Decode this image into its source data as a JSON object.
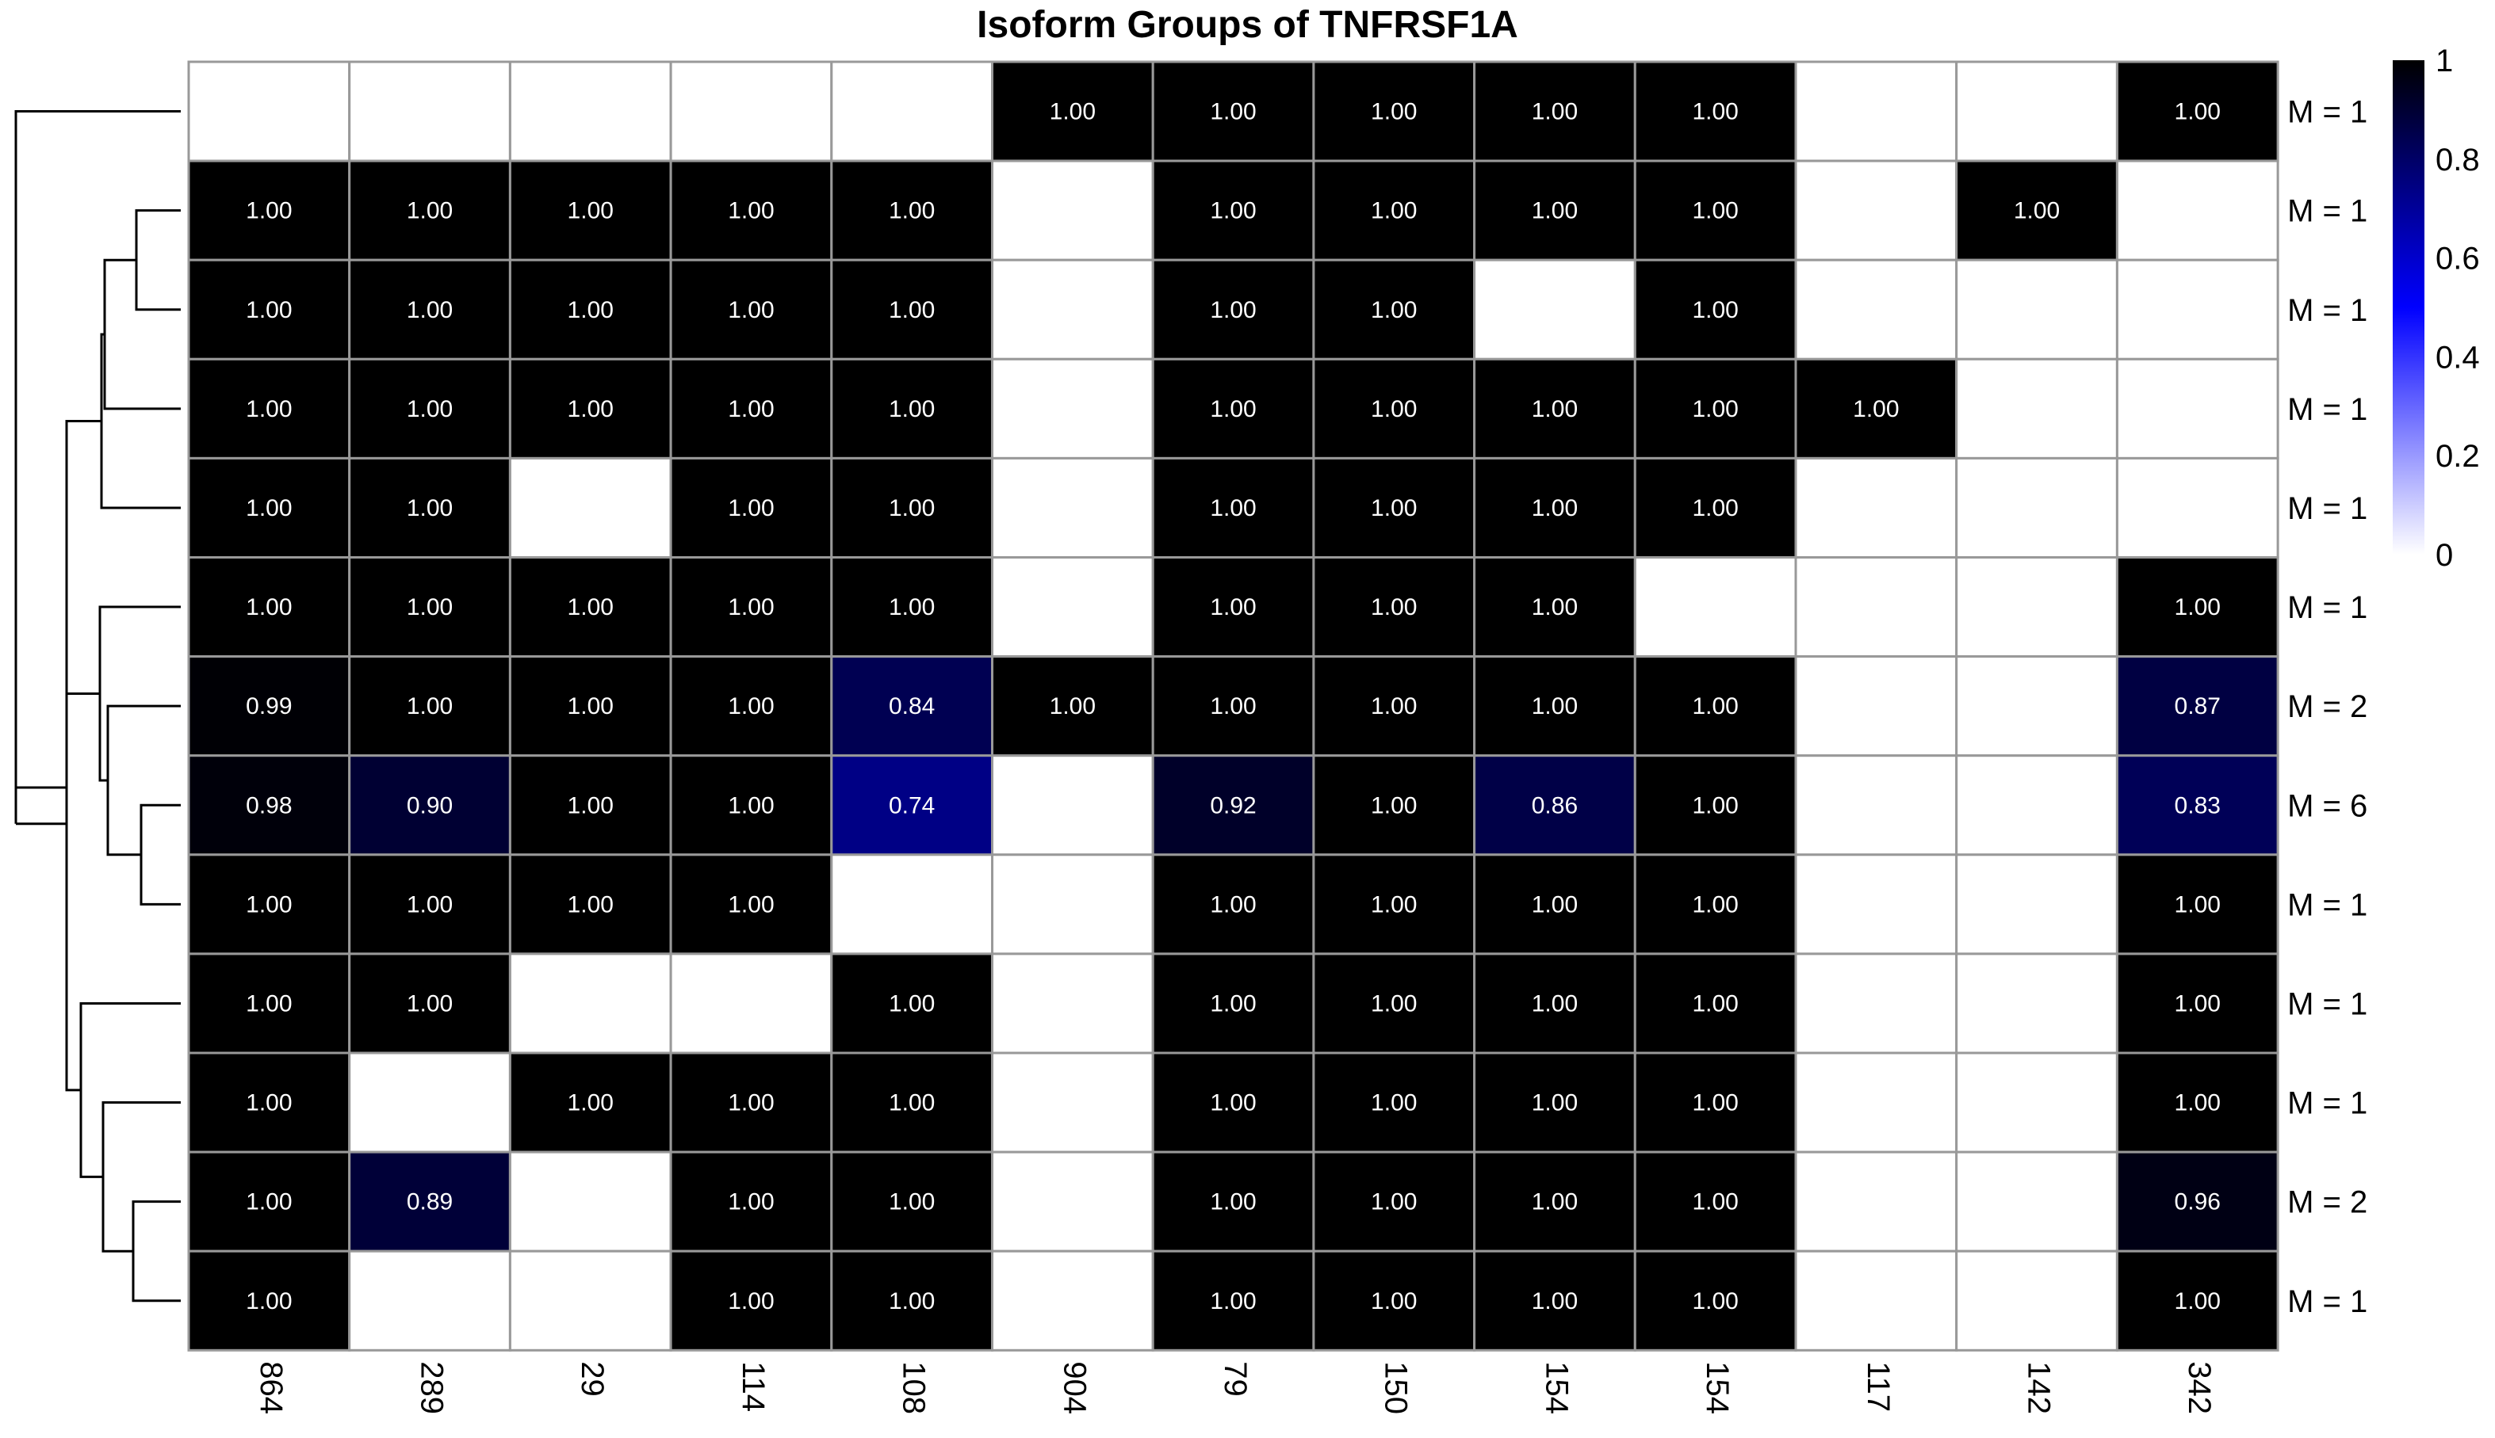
{
  "chart_data": {
    "type": "heatmap",
    "title": "Isoform Groups of TNFRSF1A",
    "columns": [
      "864",
      "289",
      "29",
      "114",
      "108",
      "904",
      "79",
      "150",
      "154",
      "154",
      "117",
      "142",
      "342"
    ],
    "row_labels": [
      "M = 1",
      "M = 1",
      "M = 1",
      "M = 1",
      "M = 1",
      "M = 1",
      "M = 2",
      "M = 6",
      "M = 1",
      "M = 1",
      "M = 1",
      "M = 2",
      "M = 1"
    ],
    "values": [
      [
        null,
        null,
        null,
        null,
        null,
        1.0,
        1.0,
        1.0,
        1.0,
        1.0,
        null,
        null,
        1.0
      ],
      [
        1.0,
        1.0,
        1.0,
        1.0,
        1.0,
        null,
        1.0,
        1.0,
        1.0,
        1.0,
        null,
        1.0,
        null
      ],
      [
        1.0,
        1.0,
        1.0,
        1.0,
        1.0,
        null,
        1.0,
        1.0,
        null,
        1.0,
        null,
        null,
        null
      ],
      [
        1.0,
        1.0,
        1.0,
        1.0,
        1.0,
        null,
        1.0,
        1.0,
        1.0,
        1.0,
        1.0,
        null,
        null
      ],
      [
        1.0,
        1.0,
        null,
        1.0,
        1.0,
        null,
        1.0,
        1.0,
        1.0,
        1.0,
        null,
        null,
        null
      ],
      [
        1.0,
        1.0,
        1.0,
        1.0,
        1.0,
        null,
        1.0,
        1.0,
        1.0,
        null,
        null,
        null,
        1.0
      ],
      [
        0.99,
        1.0,
        1.0,
        1.0,
        0.84,
        1.0,
        1.0,
        1.0,
        1.0,
        1.0,
        null,
        null,
        0.87
      ],
      [
        0.98,
        0.9,
        1.0,
        1.0,
        0.74,
        null,
        0.92,
        1.0,
        0.86,
        1.0,
        null,
        null,
        0.83
      ],
      [
        1.0,
        1.0,
        1.0,
        1.0,
        null,
        null,
        1.0,
        1.0,
        1.0,
        1.0,
        null,
        null,
        1.0
      ],
      [
        1.0,
        1.0,
        null,
        null,
        1.0,
        null,
        1.0,
        1.0,
        1.0,
        1.0,
        null,
        null,
        1.0
      ],
      [
        1.0,
        null,
        1.0,
        1.0,
        1.0,
        null,
        1.0,
        1.0,
        1.0,
        1.0,
        null,
        null,
        1.0
      ],
      [
        1.0,
        0.89,
        null,
        1.0,
        1.0,
        null,
        1.0,
        1.0,
        1.0,
        1.0,
        null,
        null,
        0.96
      ],
      [
        1.0,
        null,
        null,
        1.0,
        1.0,
        null,
        1.0,
        1.0,
        1.0,
        1.0,
        null,
        null,
        1.0
      ]
    ],
    "colorscale": {
      "range": [
        0,
        1
      ],
      "ticks": [
        "0",
        "0.2",
        "0.4",
        "0.6",
        "0.8",
        "1"
      ],
      "low_color": "#ffffff",
      "mid_color": "#0000ff",
      "high_color": "#000000"
    },
    "row_dendrogram": true,
    "legend_position": "top-right",
    "colors": {
      "grid": "#999999",
      "cell_text": "#ffffff"
    }
  }
}
